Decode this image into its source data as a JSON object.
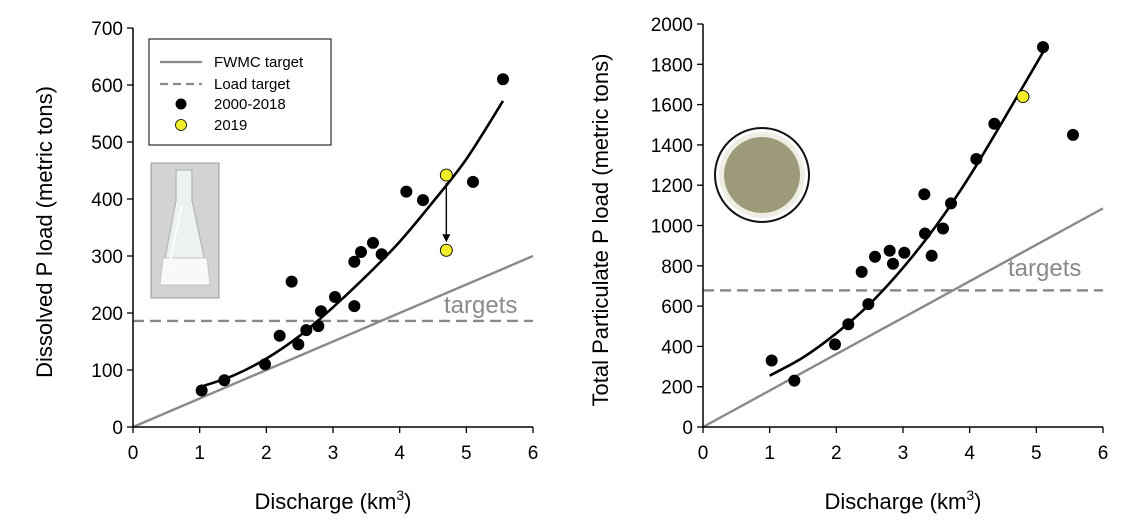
{
  "chart_data": [
    {
      "type": "scatter",
      "xlabel": "Discharge (km",
      "xlabel_sup": "3",
      "xlabel_end": ")",
      "ylabel": "Dissolved P load (metric tons)",
      "xlim": [
        0,
        6
      ],
      "ylim": [
        0,
        700
      ],
      "xticks": [
        0,
        1,
        2,
        3,
        4,
        5,
        6
      ],
      "yticks": [
        0,
        100,
        200,
        300,
        400,
        500,
        600,
        700
      ],
      "legend": {
        "position": "top-left",
        "entries": [
          {
            "label": "FWMC target",
            "style": "solid-line",
            "color": "#8a8a8a"
          },
          {
            "label": "Load target",
            "style": "dashed-line",
            "color": "#8a8a8a"
          },
          {
            "label": "2000-2018",
            "style": "marker",
            "color": "#000000"
          },
          {
            "label": "2019",
            "style": "marker",
            "color": "#f2ee2a"
          }
        ]
      },
      "annotation": "targets",
      "image_description": "flask-photo",
      "series": [
        {
          "name": "2000-2018",
          "color": "#000000",
          "x": [
            1.03,
            1.37,
            1.98,
            2.2,
            2.38,
            2.48,
            2.6,
            2.78,
            2.82,
            3.03,
            3.32,
            3.32,
            3.42,
            3.6,
            3.73,
            4.1,
            4.35,
            5.1,
            5.55
          ],
          "y": [
            64,
            82,
            110,
            160,
            255,
            145,
            170,
            177,
            203,
            228,
            212,
            290,
            307,
            323,
            303,
            413,
            398,
            430,
            610
          ]
        },
        {
          "name": "2019",
          "color": "#f2ee2a",
          "x": [
            4.7,
            4.7
          ],
          "y": [
            442,
            310
          ]
        }
      ],
      "arrow": {
        "from": [
          4.7,
          442
        ],
        "to": [
          4.7,
          310
        ]
      },
      "fwmc_target": {
        "x": [
          0,
          6
        ],
        "y": [
          0,
          300
        ]
      },
      "load_target": 186,
      "fit_curve": {
        "x": [
          1.0,
          1.5,
          2.0,
          2.5,
          3.0,
          3.5,
          4.0,
          4.5,
          5.0,
          5.55
        ],
        "y": [
          70,
          90,
          120,
          160,
          210,
          265,
          325,
          395,
          470,
          572
        ]
      }
    },
    {
      "type": "scatter",
      "xlabel": "Discharge (km",
      "xlabel_sup": "3",
      "xlabel_end": ")",
      "ylabel": "Total Particulate P load (metric tons)",
      "xlim": [
        0,
        6
      ],
      "ylim": [
        0,
        2000
      ],
      "xticks": [
        0,
        1,
        2,
        3,
        4,
        5,
        6
      ],
      "yticks": [
        0,
        200,
        400,
        600,
        800,
        1000,
        1200,
        1400,
        1600,
        1800,
        2000
      ],
      "annotation": "targets",
      "image_description": "filter-photo",
      "series": [
        {
          "name": "2000-2018",
          "color": "#000000",
          "x": [
            1.03,
            1.37,
            1.98,
            2.18,
            2.38,
            2.48,
            2.58,
            2.8,
            2.85,
            3.02,
            3.32,
            3.33,
            3.43,
            3.6,
            3.72,
            4.1,
            4.37,
            5.1,
            5.55
          ],
          "y": [
            330,
            230,
            410,
            510,
            770,
            610,
            845,
            875,
            810,
            865,
            1155,
            960,
            850,
            985,
            1110,
            1330,
            1505,
            1885,
            1450
          ]
        },
        {
          "name": "2019",
          "color": "#f2ee2a",
          "x": [
            4.8
          ],
          "y": [
            1640
          ]
        }
      ],
      "fwmc_target": {
        "x": [
          0,
          6
        ],
        "y": [
          0,
          1085
        ]
      },
      "load_target": 678,
      "fit_curve": {
        "x": [
          1.0,
          1.5,
          2.0,
          2.5,
          3.0,
          3.5,
          4.0,
          4.5,
          5.1
        ],
        "y": [
          255,
          345,
          465,
          610,
          790,
          1000,
          1245,
          1520,
          1860
        ]
      }
    }
  ]
}
